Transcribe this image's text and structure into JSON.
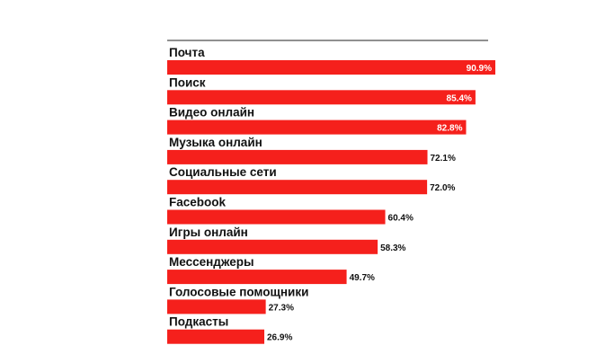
{
  "chart_data": {
    "type": "bar",
    "orientation": "horizontal",
    "categories": [
      "Почта",
      "Поиск",
      "Видео онлайн",
      "Музыка онлайн",
      "Социальные сети",
      "Facebook",
      "Игры онлайн",
      "Мессенджеры",
      "Голосовые помощники",
      "Подкасты"
    ],
    "values": [
      90.9,
      85.4,
      82.8,
      72.1,
      72.0,
      60.4,
      58.3,
      49.7,
      27.3,
      26.9
    ],
    "value_labels": [
      "90.9%",
      "85.4%",
      "82.8%",
      "72.1%",
      "72.0%",
      "60.4%",
      "58.3%",
      "49.7%",
      "27.3%",
      "26.9%"
    ],
    "xlim": [
      0,
      100
    ],
    "title": "",
    "xlabel": "",
    "ylabel": "",
    "grid": false,
    "legend": "none",
    "bar_color": "#f5201c"
  }
}
